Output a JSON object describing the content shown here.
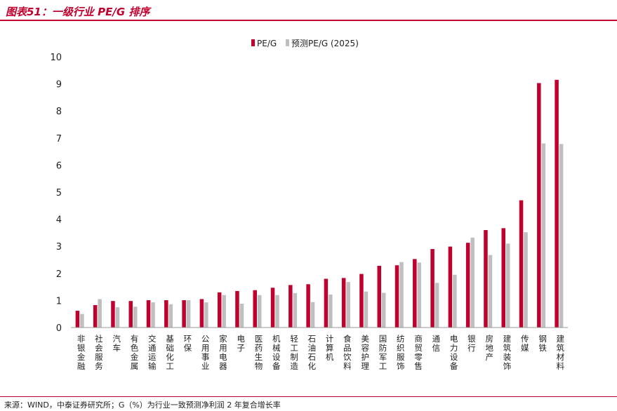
{
  "header": {
    "title": "图表51：一级行业 PE/G 排序"
  },
  "footer": {
    "source": "来源：WIND，中泰证券研究所；G（%）为行业一致预测净利润 2 年复合增长率"
  },
  "colors": {
    "accent": "#c0002d",
    "series_pe_g": "#c0002d",
    "series_forecast": "#bfbfbf"
  },
  "chart_data": {
    "type": "bar",
    "title": "",
    "xlabel": "",
    "ylabel": "",
    "ylim": [
      0,
      10
    ],
    "yticks": [
      0,
      1,
      2,
      3,
      4,
      5,
      6,
      7,
      8,
      9,
      10
    ],
    "grid": false,
    "legend_position": "top-center",
    "categories": [
      "非银金融",
      "社会服务",
      "汽车",
      "有色金属",
      "交通运输",
      "基础化工",
      "环保",
      "公用事业",
      "家用电器",
      "电子",
      "医药生物",
      "机械设备",
      "轻工制造",
      "石油石化",
      "计算机",
      "食品饮料",
      "美容护理",
      "国防军工",
      "纺织服饰",
      "商贸零售",
      "通信",
      "电力设备",
      "银行",
      "房地产",
      "建筑装饰",
      "传媒",
      "钢铁",
      "建筑材料"
    ],
    "series": [
      {
        "name": "PE/G",
        "values": [
          0.62,
          0.83,
          0.98,
          0.98,
          1.01,
          1.01,
          1.01,
          1.05,
          1.3,
          1.35,
          1.38,
          1.47,
          1.57,
          1.6,
          1.8,
          1.83,
          1.98,
          2.28,
          2.3,
          2.53,
          2.9,
          2.99,
          3.13,
          3.6,
          3.67,
          4.7,
          9.03,
          9.15
        ]
      },
      {
        "name": "预测PE/G (2025)",
        "values": [
          0.5,
          1.05,
          0.75,
          0.77,
          0.93,
          0.86,
          1.01,
          0.93,
          1.2,
          0.88,
          1.2,
          1.2,
          1.27,
          0.94,
          1.22,
          1.68,
          1.33,
          1.28,
          2.42,
          2.4,
          1.65,
          1.95,
          3.32,
          2.68,
          3.1,
          3.52,
          6.8,
          6.78
        ]
      }
    ]
  }
}
